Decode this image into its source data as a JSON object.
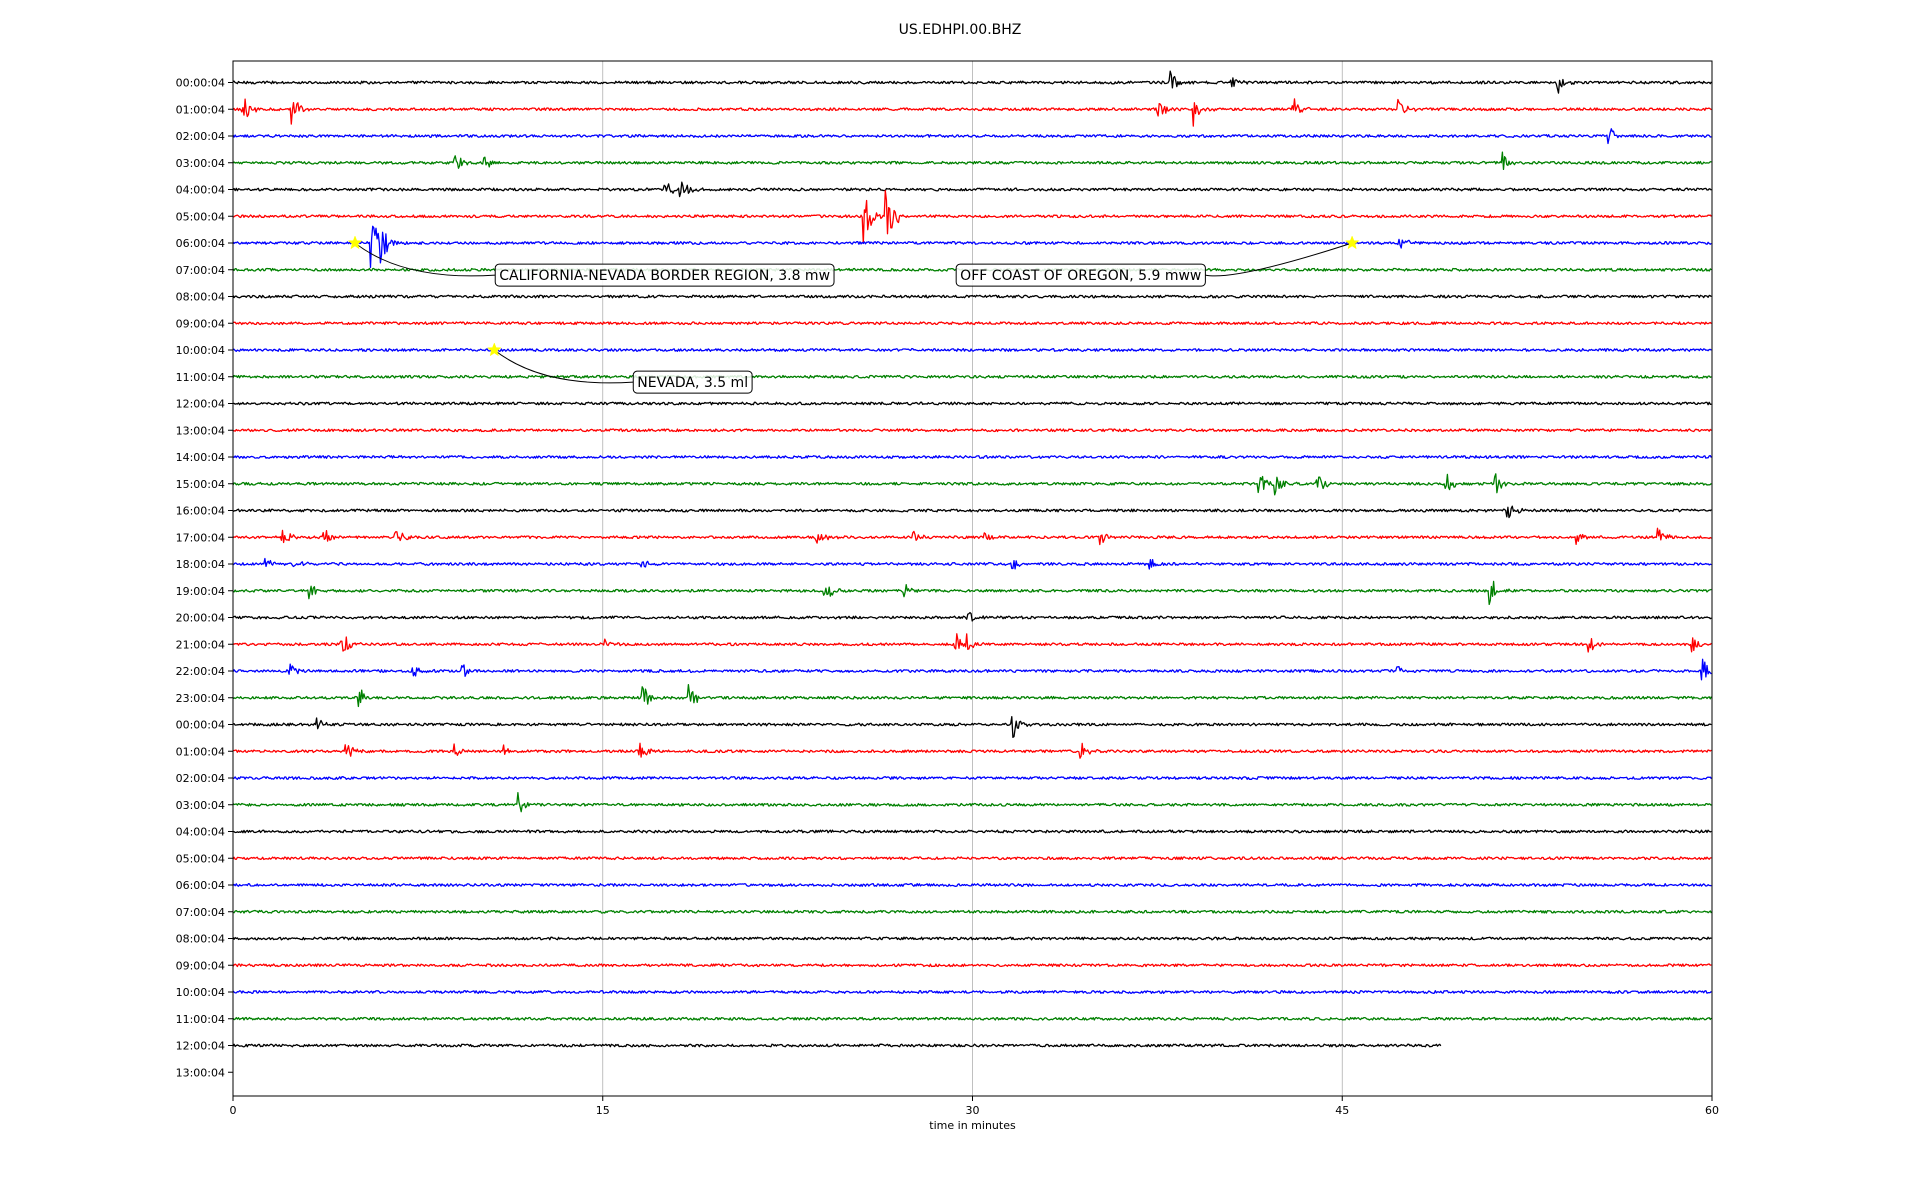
{
  "chart_data": {
    "type": "line",
    "title": "US.EDHPI.00.BHZ",
    "xlabel": "time in minutes",
    "ylabel": "",
    "xlim": [
      0,
      60
    ],
    "x_ticks": [
      "0",
      "15",
      "30",
      "45",
      "60"
    ],
    "x_tick_values": [
      0,
      15,
      30,
      45,
      60
    ],
    "grid": "vertical",
    "colors": [
      "#000000",
      "#ff0000",
      "#0000ff",
      "#008000"
    ],
    "rows": [
      {
        "label": "00:00:04",
        "end_minute": 60,
        "events": [
          [
            38.0,
            0.8
          ],
          [
            53.7,
            1.0
          ],
          [
            40.5,
            0.4
          ]
        ]
      },
      {
        "label": "01:00:04",
        "end_minute": 60,
        "events": [
          [
            0.4,
            0.9
          ],
          [
            2.4,
            1.0
          ],
          [
            37.5,
            0.8
          ],
          [
            39.0,
            0.9
          ],
          [
            43.0,
            0.7
          ],
          [
            47.3,
            0.8
          ]
        ]
      },
      {
        "label": "02:00:04",
        "end_minute": 60,
        "events": [
          [
            55.8,
            0.7
          ]
        ]
      },
      {
        "label": "03:00:04",
        "end_minute": 60,
        "events": [
          [
            9.0,
            0.6
          ],
          [
            10.2,
            0.5
          ],
          [
            51.5,
            0.6
          ]
        ]
      },
      {
        "label": "04:00:04",
        "end_minute": 60,
        "events": [
          [
            17.5,
            0.7
          ],
          [
            18.1,
            0.9
          ]
        ]
      },
      {
        "label": "05:00:04",
        "end_minute": 60,
        "events": [
          [
            25.6,
            1.9
          ],
          [
            26.5,
            2.4
          ]
        ]
      },
      {
        "label": "06:00:04",
        "end_minute": 60,
        "events": [
          [
            5.6,
            1.9
          ],
          [
            6.0,
            1.3
          ],
          [
            47.3,
            0.5
          ]
        ]
      },
      {
        "label": "07:00:04",
        "end_minute": 60,
        "events": []
      },
      {
        "label": "08:00:04",
        "end_minute": 60,
        "events": []
      },
      {
        "label": "09:00:04",
        "end_minute": 60,
        "events": []
      },
      {
        "label": "10:00:04",
        "end_minute": 60,
        "events": []
      },
      {
        "label": "11:00:04",
        "end_minute": 60,
        "events": []
      },
      {
        "label": "12:00:04",
        "end_minute": 60,
        "events": []
      },
      {
        "label": "13:00:04",
        "end_minute": 60,
        "events": []
      },
      {
        "label": "14:00:04",
        "end_minute": 60,
        "events": []
      },
      {
        "label": "15:00:04",
        "end_minute": 60,
        "events": [
          [
            41.6,
            0.9
          ],
          [
            42.3,
            0.7
          ],
          [
            44.0,
            0.6
          ],
          [
            49.2,
            0.8
          ],
          [
            51.2,
            0.6
          ]
        ]
      },
      {
        "label": "16:00:04",
        "end_minute": 60,
        "events": [
          [
            51.7,
            0.6
          ],
          [
            49.9,
            0.4
          ]
        ]
      },
      {
        "label": "17:00:04",
        "end_minute": 60,
        "events": [
          [
            2.0,
            0.5
          ],
          [
            3.7,
            0.5
          ],
          [
            6.6,
            0.7
          ],
          [
            23.7,
            0.5
          ],
          [
            27.6,
            0.5
          ],
          [
            30.5,
            0.5
          ],
          [
            35.2,
            0.5
          ],
          [
            54.5,
            0.5
          ],
          [
            57.8,
            0.6
          ]
        ]
      },
      {
        "label": "18:00:04",
        "end_minute": 60,
        "events": [
          [
            1.3,
            0.5
          ],
          [
            2.5,
            0.4
          ],
          [
            16.5,
            0.4
          ],
          [
            31.6,
            0.5
          ],
          [
            37.2,
            0.4
          ]
        ]
      },
      {
        "label": "19:00:04",
        "end_minute": 60,
        "events": [
          [
            3.1,
            0.6
          ],
          [
            24.0,
            0.7
          ],
          [
            27.2,
            0.7
          ],
          [
            51.0,
            0.9
          ]
        ]
      },
      {
        "label": "20:00:04",
        "end_minute": 60,
        "events": [
          [
            29.8,
            0.5
          ]
        ]
      },
      {
        "label": "21:00:04",
        "end_minute": 60,
        "events": [
          [
            4.4,
            0.9
          ],
          [
            15.1,
            0.4
          ],
          [
            29.3,
            0.8
          ],
          [
            29.8,
            0.6
          ],
          [
            55.0,
            0.6
          ],
          [
            59.2,
            0.5
          ]
        ]
      },
      {
        "label": "22:00:04",
        "end_minute": 60,
        "events": [
          [
            2.3,
            0.6
          ],
          [
            7.3,
            0.5
          ],
          [
            9.3,
            0.5
          ],
          [
            47.2,
            0.4
          ],
          [
            59.6,
            0.8
          ]
        ]
      },
      {
        "label": "23:00:04",
        "end_minute": 60,
        "events": [
          [
            5.1,
            0.7
          ],
          [
            16.6,
            0.9
          ],
          [
            18.5,
            0.9
          ]
        ]
      },
      {
        "label": "00:00:04",
        "end_minute": 60,
        "events": [
          [
            3.4,
            0.4
          ],
          [
            31.6,
            0.9
          ]
        ]
      },
      {
        "label": "01:00:04",
        "end_minute": 60,
        "events": [
          [
            4.6,
            0.6
          ],
          [
            9.0,
            0.4
          ],
          [
            11.0,
            0.4
          ],
          [
            16.5,
            0.6
          ],
          [
            34.4,
            0.5
          ]
        ]
      },
      {
        "label": "02:00:04",
        "end_minute": 60,
        "events": []
      },
      {
        "label": "03:00:04",
        "end_minute": 60,
        "events": [
          [
            11.6,
            0.7
          ]
        ]
      },
      {
        "label": "04:00:04",
        "end_minute": 60,
        "events": []
      },
      {
        "label": "05:00:04",
        "end_minute": 60,
        "events": []
      },
      {
        "label": "06:00:04",
        "end_minute": 60,
        "events": []
      },
      {
        "label": "07:00:04",
        "end_minute": 60,
        "events": []
      },
      {
        "label": "08:00:04",
        "end_minute": 60,
        "events": []
      },
      {
        "label": "09:00:04",
        "end_minute": 60,
        "events": []
      },
      {
        "label": "10:00:04",
        "end_minute": 60,
        "events": []
      },
      {
        "label": "11:00:04",
        "end_minute": 60,
        "events": []
      },
      {
        "label": "12:00:04",
        "end_minute": 49,
        "events": []
      },
      {
        "label": "13:00:04",
        "end_minute": 0,
        "events": []
      }
    ],
    "annotations": [
      {
        "text": "CALIFORNIA-NEVADA BORDER REGION, 3.8 mw",
        "row": 6,
        "minute": 4.95,
        "label_minute": 10.8,
        "label_row": 7.2
      },
      {
        "text": "OFF COAST OF OREGON, 5.9 mww",
        "row": 6,
        "minute": 45.4,
        "label_minute": 29.5,
        "label_row": 7.2
      },
      {
        "text": "NEVADA, 3.5 ml",
        "row": 10,
        "minute": 10.6,
        "label_minute": 16.4,
        "label_row": 11.2
      }
    ],
    "marker_color": "#ffff00"
  }
}
